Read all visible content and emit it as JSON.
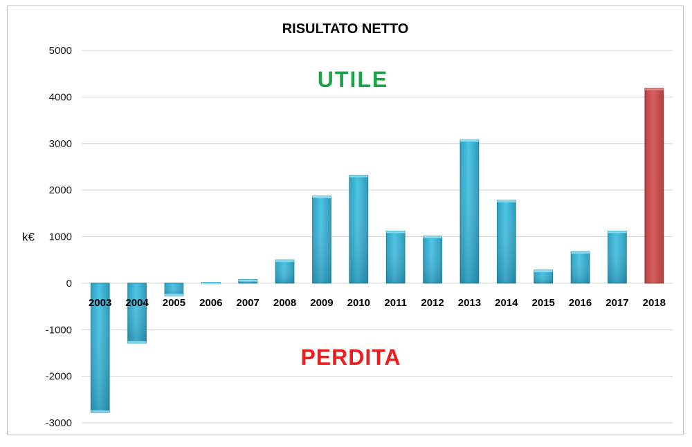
{
  "chart_data": {
    "type": "bar",
    "title": "RISULTATO NETTO",
    "xlabel": "",
    "ylabel": "k€",
    "ylim": [
      -3000,
      5000
    ],
    "yticks": [
      5000,
      4000,
      3000,
      2000,
      1000,
      0,
      -1000,
      -2000,
      -3000
    ],
    "grid": true,
    "categories": [
      "2003",
      "2004",
      "2005",
      "2006",
      "2007",
      "2008",
      "2009",
      "2010",
      "2011",
      "2012",
      "2013",
      "2014",
      "2015",
      "2016",
      "2017",
      "2018"
    ],
    "values": [
      -2780,
      -1290,
      -270,
      20,
      80,
      500,
      1870,
      2320,
      1120,
      1010,
      3080,
      1780,
      280,
      680,
      1120,
      4190
    ],
    "annotations": {
      "positive": "UTILE",
      "negative": "PERDITA"
    },
    "colors": {
      "bar": "#3db8da",
      "bar_dark": "#1e7f9e",
      "highlight": "#c94f4f",
      "highlight_dark": "#8f2d2d",
      "grid": "#d9d9d9"
    }
  }
}
